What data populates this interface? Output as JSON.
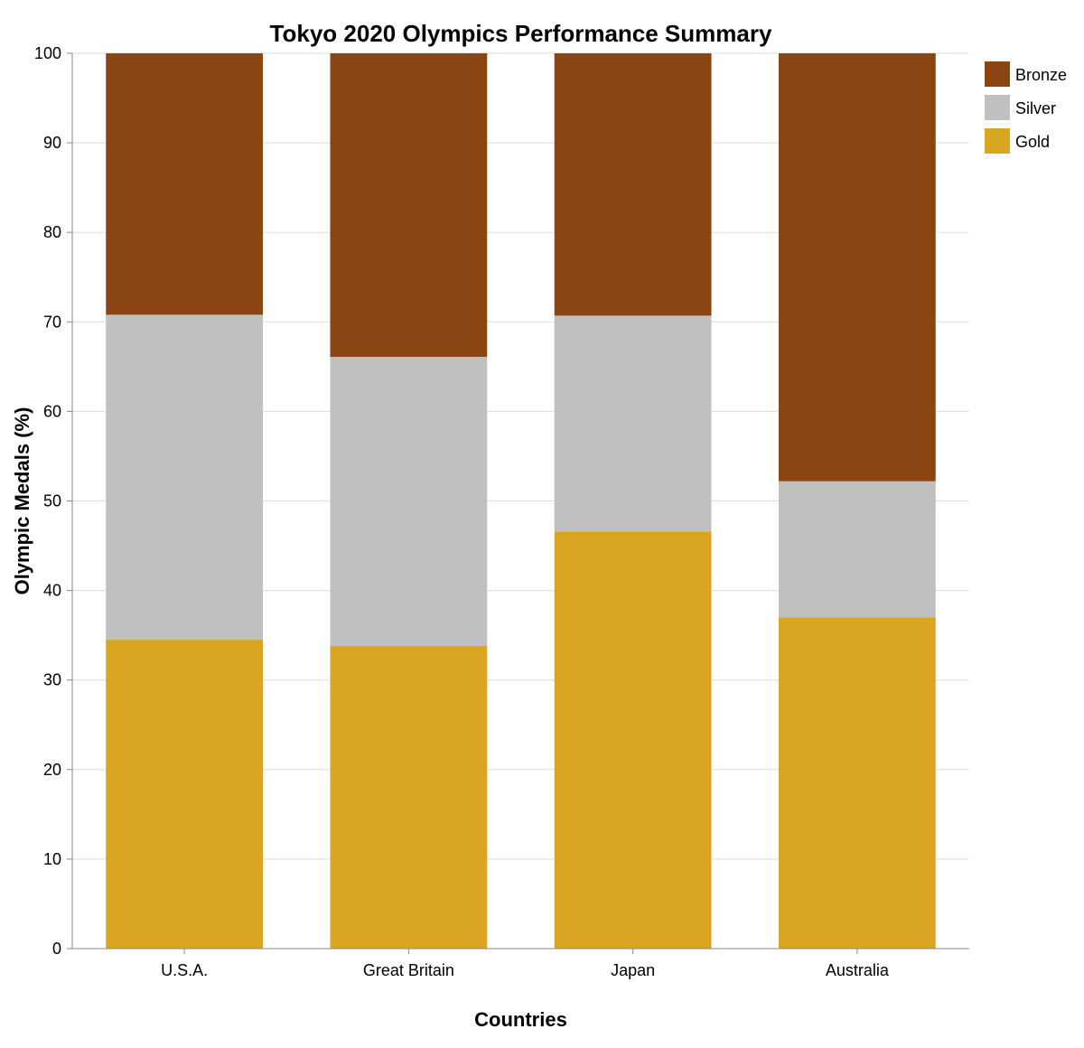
{
  "chart_data": {
    "type": "bar",
    "stacked": true,
    "title": "Tokyo 2020 Olympics Performance Summary",
    "xlabel": "Countries",
    "ylabel": "Olympic Medals (%)",
    "categories": [
      "U.S.A.",
      "Great Britain",
      "Japan",
      "Australia"
    ],
    "ylim": [
      0,
      100
    ],
    "yticks": [
      0,
      10,
      20,
      30,
      40,
      50,
      60,
      70,
      80,
      90,
      100
    ],
    "grid": true,
    "legend_position": "top-right",
    "series": [
      {
        "name": "Gold",
        "color": "#DAA520",
        "values": [
          34.5,
          33.8,
          46.6,
          37.0
        ]
      },
      {
        "name": "Silver",
        "color": "#C0C0C0",
        "values": [
          36.3,
          32.3,
          24.1,
          15.2
        ]
      },
      {
        "name": "Bronze",
        "color": "#8B4513",
        "values": [
          29.2,
          33.9,
          29.3,
          47.8
        ]
      }
    ],
    "legend_order": [
      "Bronze",
      "Silver",
      "Gold"
    ]
  }
}
